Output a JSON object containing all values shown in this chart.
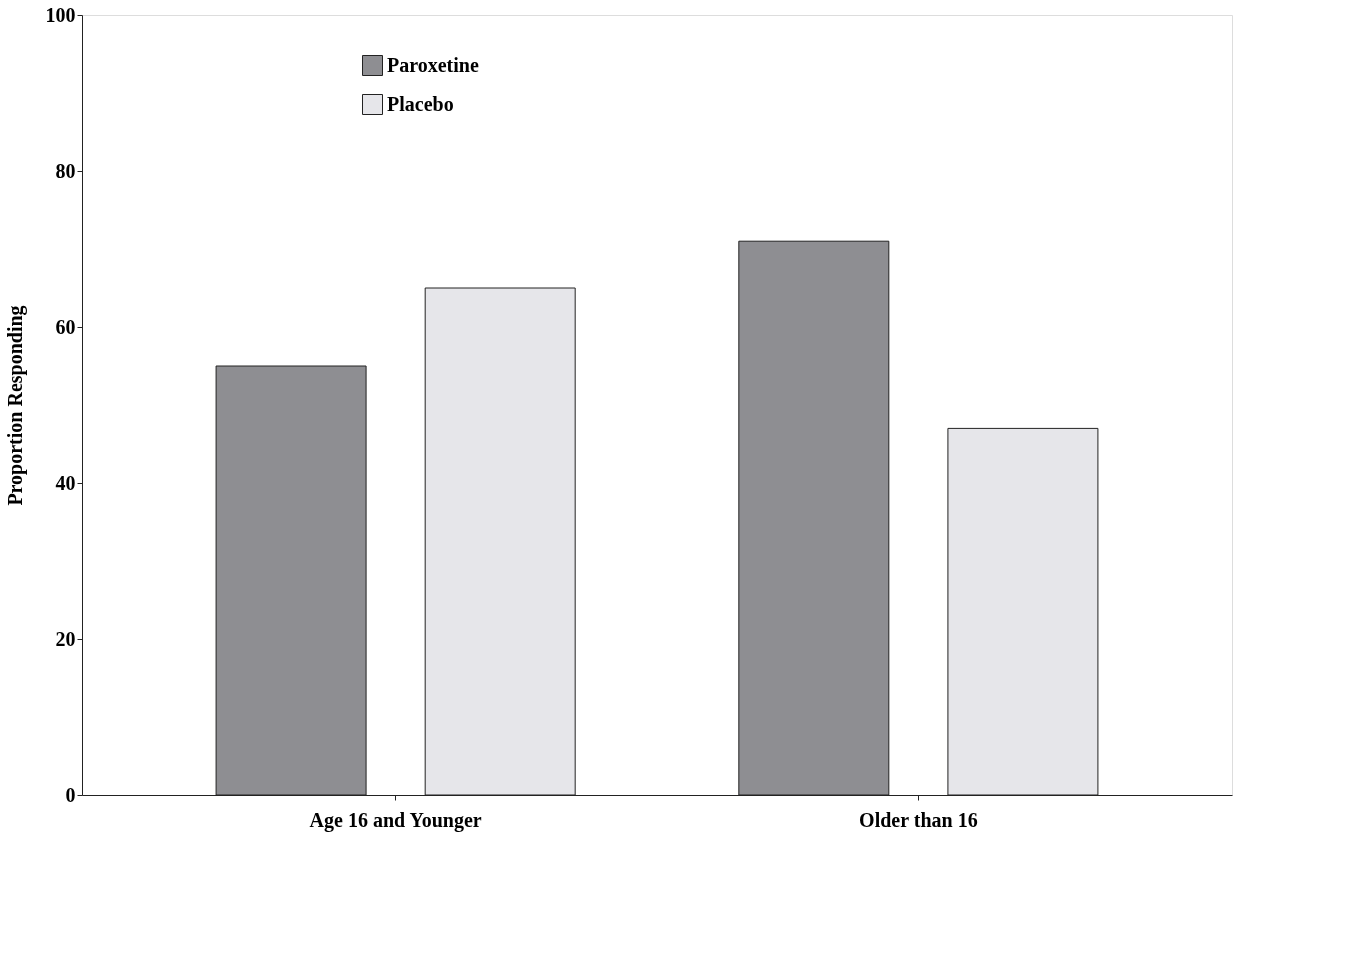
{
  "chart_data": {
    "type": "bar",
    "ylabel": "Proportion Responding",
    "categories": [
      "Age 16 and Younger",
      "Older than 16"
    ],
    "series": [
      {
        "name": "Paroxetine",
        "color": "#8e8e92",
        "values": [
          55,
          71
        ]
      },
      {
        "name": "Placebo",
        "color": "#e6e6ea",
        "values": [
          65,
          47
        ]
      }
    ],
    "ylim": [
      0,
      100
    ],
    "yticks": [
      0,
      20,
      40,
      60,
      80,
      100
    ],
    "grid": false,
    "legend": "top left"
  }
}
